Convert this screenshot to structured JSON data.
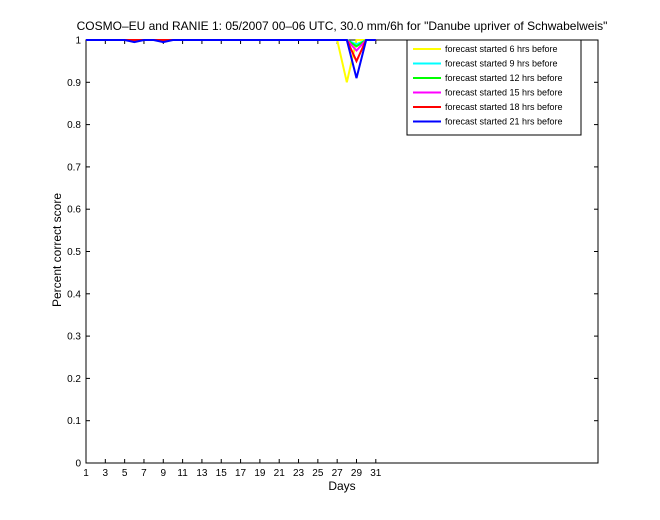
{
  "chart_data": {
    "type": "line",
    "title": "COSMO–EU and RANIE 1: 05/2007 00–06 UTC, 30.0 mm/6h for \"Danube upriver of Schwabelweis\"",
    "xlabel": "Days",
    "ylabel": "Percent correct score",
    "xlim": [
      1,
      54
    ],
    "ylim": [
      0,
      1
    ],
    "xticks": [
      1,
      3,
      5,
      7,
      9,
      11,
      13,
      15,
      17,
      19,
      21,
      23,
      25,
      27,
      29,
      31
    ],
    "yticks": [
      0,
      0.1,
      0.2,
      0.3,
      0.4,
      0.5,
      0.6,
      0.7,
      0.8,
      0.9,
      1
    ],
    "ytick_labels": [
      "0",
      "0.1",
      "0.2",
      "0.3",
      "0.4",
      "0.5",
      "0.6",
      "0.7",
      "0.8",
      "0.9",
      "1"
    ],
    "grid": false,
    "legend_position": "top-right",
    "x": [
      1,
      2,
      3,
      4,
      5,
      6,
      7,
      8,
      9,
      10,
      11,
      12,
      13,
      14,
      15,
      16,
      17,
      18,
      19,
      20,
      21,
      22,
      23,
      24,
      25,
      26,
      27,
      28,
      29,
      30,
      31
    ],
    "series": [
      {
        "name": "forecast started 6 hrs before",
        "color": "#ffff00",
        "values": [
          1,
          1,
          1,
          1,
          1,
          1,
          1,
          1,
          1,
          1,
          1,
          1,
          1,
          1,
          1,
          1,
          1,
          1,
          1,
          1,
          1,
          1,
          1,
          1,
          1,
          1,
          1,
          0.9,
          1,
          1,
          1
        ]
      },
      {
        "name": "forecast started 9 hrs before",
        "color": "#00ffff",
        "values": [
          1,
          1,
          1,
          1,
          1,
          1,
          1,
          1,
          1,
          1,
          1,
          1,
          1,
          1,
          1,
          1,
          1,
          1,
          1,
          1,
          1,
          1,
          1,
          1,
          1,
          1,
          1,
          1,
          0.99,
          1,
          1
        ]
      },
      {
        "name": "forecast started 12 hrs before",
        "color": "#00ff00",
        "values": [
          1,
          1,
          1,
          1,
          1,
          1,
          1,
          1,
          1,
          1,
          1,
          1,
          1,
          1,
          1,
          1,
          1,
          1,
          1,
          1,
          1,
          1,
          1,
          1,
          1,
          1,
          1,
          1,
          0.985,
          1,
          1
        ]
      },
      {
        "name": "forecast started 15 hrs before",
        "color": "#ff00ff",
        "values": [
          1,
          1,
          1,
          1,
          1,
          1,
          1,
          1,
          1,
          1,
          1,
          1,
          1,
          1,
          1,
          1,
          1,
          1,
          1,
          1,
          1,
          1,
          1,
          1,
          1,
          1,
          1,
          1,
          0.975,
          1,
          1
        ]
      },
      {
        "name": "forecast started 18 hrs before",
        "color": "#ff0000",
        "values": [
          1,
          1,
          1,
          1,
          1,
          1,
          1,
          1,
          1,
          1,
          1,
          1,
          1,
          1,
          1,
          1,
          1,
          1,
          1,
          1,
          1,
          1,
          1,
          1,
          1,
          1,
          1,
          1,
          0.95,
          1,
          1
        ]
      },
      {
        "name": "forecast started 21 hrs before",
        "color": "#0000ff",
        "values": [
          1,
          1,
          1,
          1,
          1,
          0.995,
          1,
          1,
          0.995,
          1,
          1,
          1,
          1,
          1,
          1,
          1,
          1,
          1,
          1,
          1,
          1,
          1,
          1,
          1,
          1,
          1,
          1,
          1,
          0.91,
          1,
          1
        ]
      }
    ]
  }
}
